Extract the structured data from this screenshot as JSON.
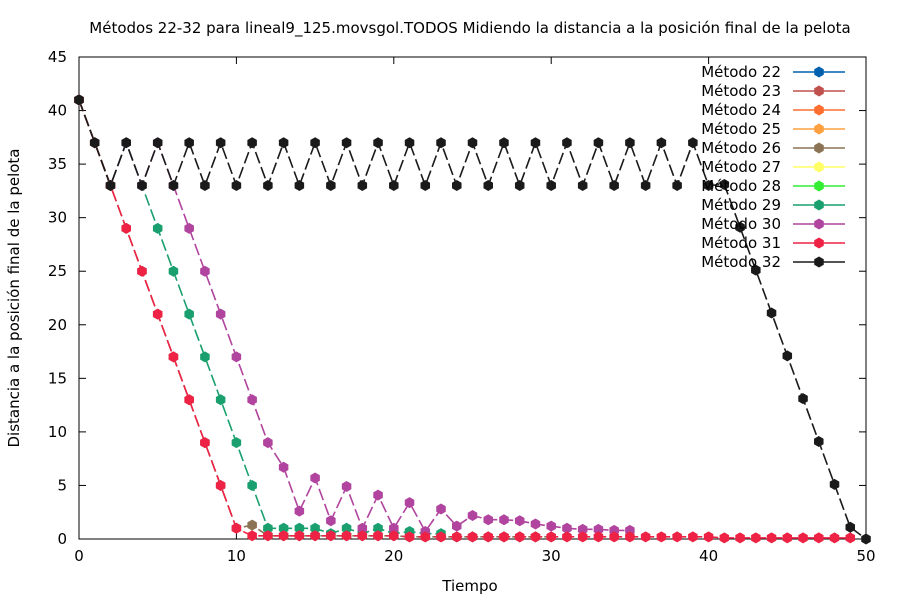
{
  "chart_data": {
    "type": "line",
    "title": "Métodos 22-32 para lineal9_125.movsgol.TODOS Midiendo la distancia a la posición final de la pelota",
    "xlabel": "Tiempo",
    "ylabel": "Distancia a la posición final de la pelota",
    "xlim": [
      0,
      50
    ],
    "ylim": [
      0,
      45
    ],
    "xticks": [
      0,
      10,
      20,
      30,
      40,
      50
    ],
    "yticks": [
      0,
      5,
      10,
      15,
      20,
      25,
      30,
      35,
      40,
      45
    ],
    "grid": false,
    "legend_position": "top-right",
    "series": [
      {
        "name": "Método 22",
        "color": "#0060ad",
        "x": [
          0,
          1,
          2
        ],
        "y": [
          41,
          37,
          33
        ]
      },
      {
        "name": "Método 23",
        "color": "#c0504d",
        "x": [
          0,
          1,
          2
        ],
        "y": [
          41,
          37,
          33
        ]
      },
      {
        "name": "Método 24",
        "color": "#ff6e2e",
        "x": [
          0,
          1,
          2
        ],
        "y": [
          41,
          37,
          33
        ]
      },
      {
        "name": "Método 25",
        "color": "#ffa040",
        "x": [
          0,
          1,
          2
        ],
        "y": [
          41,
          37,
          33
        ]
      },
      {
        "name": "Método 26",
        "color": "#8b7355",
        "x": [
          0,
          1,
          2,
          3,
          4,
          5,
          6,
          7,
          8,
          9,
          10,
          11,
          12,
          13,
          14,
          15,
          16,
          17,
          18,
          19,
          20,
          21,
          22,
          23,
          24,
          25,
          26,
          27,
          28,
          29,
          30
        ],
        "y": [
          41,
          37,
          33,
          29,
          25,
          21,
          17,
          13,
          9,
          5,
          1,
          1.3,
          0.3,
          0.3,
          0.3,
          0.3,
          0.3,
          0.3,
          0.3,
          0.3,
          0.3,
          0.2,
          0.2,
          0.2,
          0.2,
          0.2,
          0.2,
          0.2,
          0.2,
          0.2,
          0.2
        ]
      },
      {
        "name": "Método 27",
        "color": "#ffff66",
        "x": [
          0,
          1,
          2
        ],
        "y": [
          41,
          37,
          33
        ]
      },
      {
        "name": "Método 28",
        "color": "#33ee33",
        "x": [
          0,
          1,
          2
        ],
        "y": [
          41,
          37,
          33
        ]
      },
      {
        "name": "Método 29",
        "color": "#1aa06e",
        "x": [
          0,
          1,
          2,
          3,
          4,
          5,
          6,
          7,
          8,
          9,
          10,
          11,
          12,
          13,
          14,
          15,
          16,
          17,
          18,
          19,
          20,
          21,
          22,
          23
        ],
        "y": [
          41,
          37,
          33,
          37,
          33,
          29,
          25,
          21,
          17,
          13,
          9,
          5,
          1,
          1,
          1,
          1,
          0.5,
          1,
          0.5,
          1,
          0.5,
          0.7,
          0.5,
          0.5
        ]
      },
      {
        "name": "Método 30",
        "color": "#b0449e",
        "x": [
          0,
          1,
          2,
          3,
          4,
          5,
          6,
          7,
          8,
          9,
          10,
          11,
          12,
          13,
          14,
          15,
          16,
          17,
          18,
          19,
          20,
          21,
          22,
          23,
          24,
          25,
          26,
          27,
          28,
          29,
          30,
          31,
          32,
          33,
          34,
          35
        ],
        "y": [
          41,
          37,
          33,
          37,
          33,
          37,
          33,
          29,
          25,
          21,
          17,
          13,
          9,
          6.7,
          2.6,
          5.7,
          1.7,
          4.9,
          1,
          4.1,
          1,
          3.4,
          0.7,
          2.8,
          1.2,
          2.2,
          1.8,
          1.8,
          1.7,
          1.4,
          1.2,
          1,
          0.9,
          0.9,
          0.8,
          0.8
        ]
      },
      {
        "name": "Método 31",
        "color": "#ee2244",
        "x": [
          0,
          1,
          2,
          3,
          4,
          5,
          6,
          7,
          8,
          9,
          10,
          11,
          12,
          13,
          14,
          15,
          16,
          17,
          18,
          19,
          20,
          21,
          22,
          23,
          24,
          25,
          26,
          27,
          28,
          29,
          30,
          31,
          32,
          33,
          34,
          35,
          36,
          37,
          38,
          39,
          40,
          41,
          42,
          43,
          44,
          45,
          46,
          47,
          48,
          49
        ],
        "y": [
          41,
          37,
          33,
          29,
          25,
          21,
          17,
          13,
          9,
          5,
          1,
          0.3,
          0.3,
          0.3,
          0.3,
          0.3,
          0.3,
          0.3,
          0.3,
          0.3,
          0.3,
          0.2,
          0.2,
          0.2,
          0.2,
          0.2,
          0.2,
          0.2,
          0.2,
          0.2,
          0.2,
          0.2,
          0.2,
          0.2,
          0.2,
          0.2,
          0.2,
          0.2,
          0.2,
          0.2,
          0.2,
          0.1,
          0.1,
          0.1,
          0.1,
          0.1,
          0.1,
          0.1,
          0.1,
          0.1
        ]
      },
      {
        "name": "Método 32",
        "color": "#1a1a1a",
        "x": [
          0,
          1,
          2,
          3,
          4,
          5,
          6,
          7,
          8,
          9,
          10,
          11,
          12,
          13,
          14,
          15,
          16,
          17,
          18,
          19,
          20,
          21,
          22,
          23,
          24,
          25,
          26,
          27,
          28,
          29,
          30,
          31,
          32,
          33,
          34,
          35,
          36,
          37,
          38,
          39,
          40,
          41,
          42,
          43,
          44,
          45,
          46,
          47,
          48,
          49,
          50
        ],
        "y": [
          41,
          37,
          33,
          37,
          33,
          37,
          33,
          37,
          33,
          37,
          33,
          37,
          33,
          37,
          33,
          37,
          33,
          37,
          33,
          37,
          33,
          37,
          33,
          37,
          33,
          37,
          33,
          37,
          33,
          37,
          33,
          37,
          33,
          37,
          33,
          37,
          33,
          37,
          33,
          37,
          33,
          33.1,
          29.1,
          25.1,
          21.1,
          17.1,
          13.1,
          9.1,
          5.1,
          1.1,
          0
        ]
      }
    ]
  }
}
